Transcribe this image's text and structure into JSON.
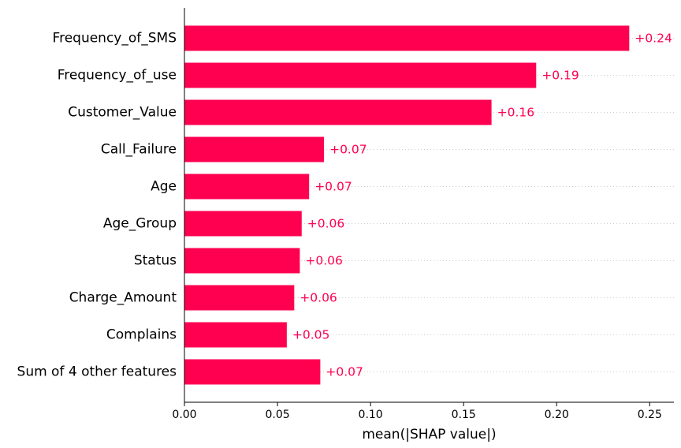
{
  "chart_data": {
    "type": "bar",
    "orientation": "horizontal",
    "categories": [
      "Frequency_of_SMS",
      "Frequency_of_use",
      "Customer_Value",
      "Call_Failure",
      "Age",
      "Age_Group",
      "Status",
      "Charge_Amount",
      "Complains",
      "Sum of 4 other features"
    ],
    "values": [
      0.239,
      0.189,
      0.165,
      0.075,
      0.067,
      0.063,
      0.062,
      0.059,
      0.055,
      0.073
    ],
    "value_labels": [
      "+0.24",
      "+0.19",
      "+0.16",
      "+0.07",
      "+0.07",
      "+0.06",
      "+0.06",
      "+0.06",
      "+0.05",
      "+0.07"
    ],
    "xlabel": "mean(|SHAP value|)",
    "xlim": [
      0,
      0.263
    ],
    "xticks": [
      0,
      0.05,
      0.1,
      0.15,
      0.2,
      0.25
    ],
    "xtick_labels": [
      "0.00",
      "0.05",
      "0.10",
      "0.15",
      "0.20",
      "0.25"
    ],
    "grid": "dotted row guides",
    "colors": {
      "bar": "#ff0051",
      "value_label": "#ff0051",
      "axis": "#000000",
      "guide": "#cccccc"
    }
  }
}
